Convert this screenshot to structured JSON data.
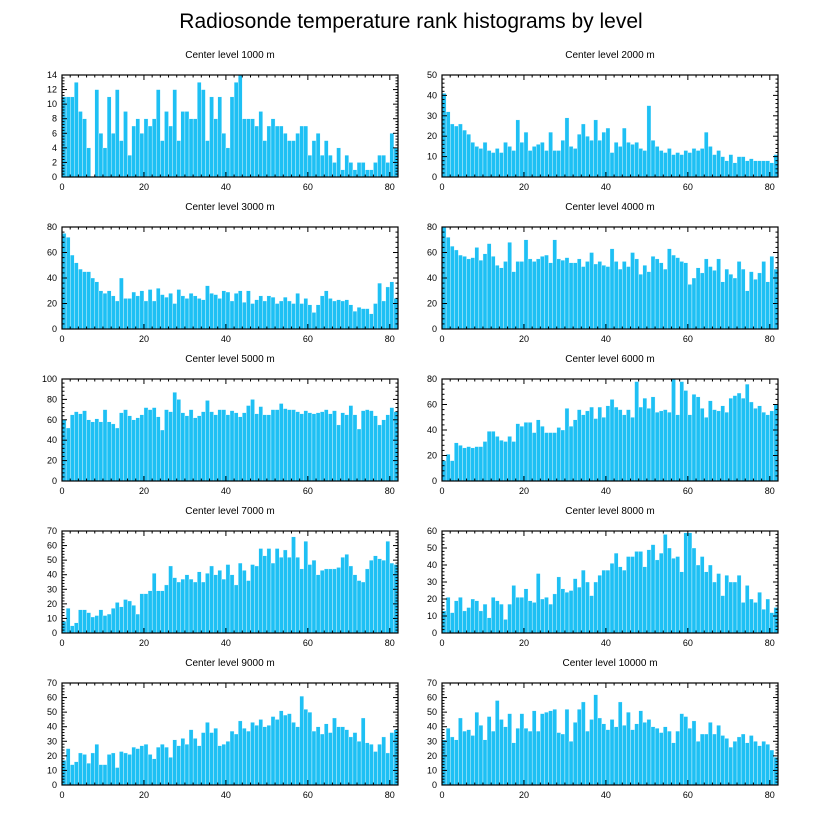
{
  "title": "Radiosonde temperature rank histograms by level",
  "colors": {
    "bar": "#1ec0f4",
    "frame": "#000000"
  },
  "chart_data": [
    {
      "type": "bar",
      "title": "Center level 1000 m",
      "xlim": [
        0,
        82
      ],
      "ylim": [
        0,
        14
      ],
      "xticks": [
        0,
        20,
        40,
        60,
        80
      ],
      "yticks": [
        0,
        2,
        4,
        6,
        8,
        10,
        12,
        14
      ],
      "values": [
        11,
        11,
        11,
        13,
        9,
        8,
        4,
        0,
        12,
        6,
        4,
        11,
        6,
        12,
        5,
        9,
        3,
        7,
        8,
        6,
        8,
        7,
        8,
        12,
        5,
        9,
        7,
        12,
        5,
        9,
        9,
        8,
        8,
        13,
        12,
        5,
        11,
        8,
        11,
        6,
        4,
        11,
        13,
        14,
        8,
        8,
        8,
        7,
        9,
        5,
        7,
        8,
        7,
        7,
        6,
        5,
        5,
        6,
        7,
        7,
        3,
        5,
        6,
        3,
        5,
        3,
        2,
        4,
        1,
        3,
        2,
        1,
        2,
        2,
        1,
        1,
        2,
        3,
        3,
        2,
        6,
        4
      ]
    },
    {
      "type": "bar",
      "title": "Center level 2000 m",
      "xlim": [
        0,
        82
      ],
      "ylim": [
        0,
        50
      ],
      "xticks": [
        0,
        20,
        40,
        60,
        80
      ],
      "yticks": [
        0,
        10,
        20,
        30,
        40,
        50
      ],
      "values": [
        41,
        32,
        26,
        25,
        26,
        23,
        21,
        17,
        15,
        14,
        17,
        13,
        12,
        14,
        12,
        17,
        15,
        13,
        28,
        17,
        22,
        13,
        15,
        16,
        17,
        13,
        22,
        13,
        13,
        18,
        29,
        15,
        14,
        21,
        26,
        20,
        18,
        28,
        18,
        22,
        24,
        12,
        17,
        15,
        24,
        17,
        16,
        17,
        14,
        13,
        35,
        18,
        15,
        13,
        12,
        14,
        11,
        12,
        11,
        13,
        12,
        14,
        13,
        14,
        22,
        15,
        11,
        13,
        10,
        8,
        11,
        7,
        10,
        10,
        8,
        9,
        8,
        8,
        8,
        8,
        7,
        11
      ]
    },
    {
      "type": "bar",
      "title": "Center level 3000 m",
      "xlim": [
        0,
        82
      ],
      "ylim": [
        0,
        80
      ],
      "xticks": [
        0,
        20,
        40,
        60,
        80
      ],
      "yticks": [
        0,
        20,
        40,
        60,
        80
      ],
      "values": [
        75,
        72,
        58,
        52,
        47,
        45,
        45,
        40,
        37,
        30,
        28,
        30,
        26,
        22,
        40,
        24,
        24,
        29,
        26,
        30,
        22,
        31,
        22,
        32,
        27,
        25,
        28,
        20,
        31,
        26,
        24,
        28,
        26,
        24,
        23,
        34,
        28,
        27,
        24,
        30,
        29,
        22,
        28,
        30,
        21,
        30,
        20,
        23,
        26,
        22,
        26,
        25,
        20,
        22,
        25,
        22,
        20,
        28,
        20,
        24,
        19,
        13,
        19,
        26,
        30,
        24,
        22,
        23,
        22,
        23,
        19,
        14,
        17,
        16,
        16,
        12,
        20,
        36,
        22,
        33,
        37,
        24
      ]
    },
    {
      "type": "bar",
      "title": "Center level 4000 m",
      "xlim": [
        0,
        82
      ],
      "ylim": [
        0,
        80
      ],
      "xticks": [
        0,
        20,
        40,
        60,
        80
      ],
      "yticks": [
        0,
        20,
        40,
        60,
        80
      ],
      "values": [
        80,
        72,
        65,
        62,
        58,
        57,
        55,
        56,
        64,
        54,
        59,
        67,
        57,
        50,
        48,
        53,
        68,
        45,
        53,
        53,
        70,
        55,
        53,
        55,
        57,
        58,
        52,
        70,
        55,
        54,
        56,
        52,
        52,
        55,
        49,
        53,
        60,
        51,
        53,
        50,
        49,
        63,
        53,
        47,
        53,
        49,
        60,
        55,
        43,
        50,
        45,
        57,
        55,
        52,
        47,
        63,
        58,
        56,
        53,
        52,
        35,
        40,
        48,
        44,
        55,
        49,
        46,
        55,
        37,
        47,
        43,
        40,
        53,
        47,
        30,
        45,
        39,
        44,
        53,
        37,
        57,
        47
      ]
    },
    {
      "type": "bar",
      "title": "Center level 5000 m",
      "xlim": [
        0,
        82
      ],
      "ylim": [
        0,
        100
      ],
      "xticks": [
        0,
        20,
        40,
        60,
        80
      ],
      "yticks": [
        0,
        20,
        40,
        60,
        80,
        100
      ],
      "values": [
        60,
        52,
        65,
        68,
        66,
        69,
        60,
        58,
        61,
        58,
        70,
        58,
        56,
        52,
        67,
        70,
        64,
        60,
        62,
        65,
        72,
        70,
        72,
        63,
        50,
        70,
        68,
        87,
        80,
        67,
        64,
        70,
        62,
        64,
        68,
        79,
        68,
        65,
        70,
        70,
        65,
        69,
        67,
        63,
        67,
        74,
        80,
        66,
        73,
        65,
        65,
        70,
        70,
        76,
        71,
        70,
        70,
        68,
        66,
        69,
        67,
        66,
        67,
        68,
        70,
        66,
        69,
        55,
        67,
        65,
        74,
        65,
        51,
        69,
        70,
        69,
        64,
        55,
        60,
        65,
        72,
        68
      ]
    },
    {
      "type": "bar",
      "title": "Center level 6000 m",
      "xlim": [
        0,
        82
      ],
      "ylim": [
        0,
        80
      ],
      "xticks": [
        0,
        20,
        40,
        60,
        80
      ],
      "yticks": [
        0,
        20,
        40,
        60,
        80
      ],
      "values": [
        16,
        21,
        16,
        30,
        28,
        26,
        27,
        26,
        27,
        27,
        31,
        39,
        39,
        35,
        32,
        31,
        35,
        31,
        45,
        43,
        46,
        46,
        38,
        48,
        43,
        38,
        38,
        38,
        42,
        40,
        57,
        43,
        48,
        56,
        52,
        55,
        58,
        49,
        58,
        50,
        59,
        64,
        58,
        56,
        52,
        56,
        50,
        78,
        58,
        65,
        57,
        66,
        54,
        55,
        56,
        54,
        80,
        52,
        78,
        71,
        52,
        68,
        66,
        57,
        50,
        63,
        56,
        55,
        59,
        54,
        65,
        67,
        69,
        65,
        76,
        62,
        57,
        59,
        54,
        52,
        55,
        60
      ]
    },
    {
      "type": "bar",
      "title": "Center level 7000 m",
      "xlim": [
        0,
        82
      ],
      "ylim": [
        0,
        70
      ],
      "xticks": [
        0,
        20,
        40,
        60,
        80
      ],
      "yticks": [
        0,
        10,
        20,
        30,
        40,
        50,
        60,
        70
      ],
      "values": [
        8,
        17,
        5,
        7,
        16,
        16,
        14,
        11,
        12,
        16,
        12,
        13,
        17,
        21,
        18,
        23,
        22,
        19,
        13,
        27,
        27,
        29,
        41,
        29,
        29,
        33,
        46,
        38,
        35,
        37,
        40,
        37,
        35,
        42,
        35,
        41,
        46,
        40,
        43,
        37,
        47,
        40,
        33,
        48,
        43,
        36,
        47,
        46,
        58,
        53,
        58,
        48,
        58,
        52,
        57,
        52,
        66,
        52,
        44,
        63,
        47,
        50,
        40,
        43,
        44,
        44,
        44,
        45,
        52,
        54,
        46,
        40,
        36,
        35,
        44,
        50,
        53,
        51,
        50,
        63,
        48,
        47
      ]
    },
    {
      "type": "bar",
      "title": "Center level 8000 m",
      "xlim": [
        0,
        82
      ],
      "ylim": [
        0,
        60
      ],
      "xticks": [
        0,
        20,
        40,
        60,
        80
      ],
      "yticks": [
        0,
        10,
        20,
        30,
        40,
        50,
        60
      ],
      "values": [
        13,
        21,
        12,
        19,
        21,
        13,
        15,
        20,
        19,
        13,
        17,
        9,
        21,
        19,
        17,
        8,
        17,
        28,
        21,
        21,
        26,
        19,
        18,
        35,
        20,
        21,
        17,
        23,
        33,
        26,
        24,
        25,
        32,
        27,
        37,
        30,
        22,
        30,
        34,
        37,
        37,
        41,
        47,
        39,
        37,
        45,
        45,
        48,
        48,
        39,
        49,
        52,
        43,
        47,
        58,
        50,
        44,
        45,
        36,
        59,
        59,
        50,
        40,
        45,
        36,
        40,
        30,
        35,
        22,
        34,
        30,
        30,
        34,
        18,
        28,
        20,
        18,
        24,
        14,
        20,
        12,
        15
      ]
    },
    {
      "type": "bar",
      "title": "Center level 9000 m",
      "xlim": [
        0,
        82
      ],
      "ylim": [
        0,
        70
      ],
      "xticks": [
        0,
        20,
        40,
        60,
        80
      ],
      "yticks": [
        0,
        10,
        20,
        30,
        40,
        50,
        60,
        70
      ],
      "values": [
        17,
        25,
        14,
        16,
        22,
        21,
        15,
        22,
        28,
        14,
        14,
        21,
        22,
        12,
        23,
        22,
        21,
        26,
        25,
        27,
        28,
        21,
        18,
        26,
        28,
        26,
        19,
        31,
        27,
        32,
        28,
        38,
        32,
        27,
        36,
        43,
        36,
        39,
        27,
        28,
        30,
        37,
        35,
        44,
        39,
        37,
        43,
        41,
        45,
        40,
        41,
        47,
        45,
        51,
        48,
        49,
        43,
        40,
        61,
        52,
        50,
        37,
        40,
        35,
        42,
        36,
        46,
        40,
        40,
        38,
        33,
        36,
        30,
        46,
        29,
        28,
        23,
        28,
        33,
        22,
        36,
        38
      ]
    },
    {
      "type": "bar",
      "title": "Center level 10000 m",
      "xlim": [
        0,
        82
      ],
      "ylim": [
        0,
        70
      ],
      "xticks": [
        0,
        20,
        40,
        60,
        80
      ],
      "yticks": [
        0,
        10,
        20,
        30,
        40,
        50,
        60,
        70
      ],
      "values": [
        31,
        39,
        33,
        31,
        46,
        37,
        38,
        34,
        50,
        41,
        31,
        47,
        37,
        58,
        45,
        40,
        49,
        29,
        39,
        49,
        39,
        37,
        51,
        37,
        49,
        50,
        51,
        52,
        36,
        35,
        52,
        30,
        43,
        52,
        57,
        37,
        45,
        62,
        46,
        42,
        38,
        45,
        40,
        57,
        41,
        50,
        38,
        42,
        51,
        43,
        45,
        40,
        39,
        36,
        40,
        37,
        29,
        37,
        49,
        47,
        39,
        44,
        30,
        35,
        35,
        43,
        35,
        41,
        34,
        32,
        26,
        30,
        33,
        35,
        29,
        34,
        30,
        27,
        30,
        28,
        24,
        19
      ]
    }
  ]
}
